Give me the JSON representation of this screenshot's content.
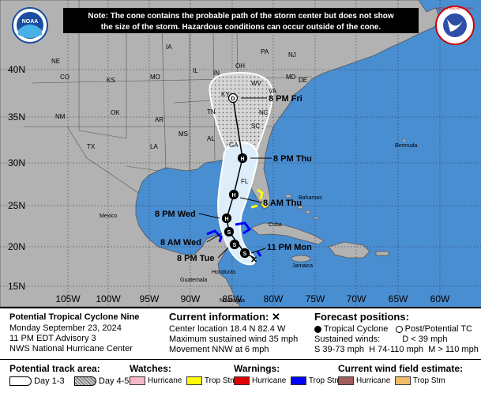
{
  "note": {
    "line1": "Note: The cone contains the probable path of the storm center but does not show",
    "line2": "the size of the storm. Hazardous conditions can occur outside of the cone."
  },
  "logos": {
    "noaa": "NOAA",
    "nws": "NATIONAL WEATHER SERVICE"
  },
  "latitudes": [
    "40N",
    "35N",
    "30N",
    "25N",
    "20N",
    "15N"
  ],
  "longitudes": [
    "105W",
    "100W",
    "95W",
    "90W",
    "85W",
    "80W",
    "75W",
    "70W",
    "65W",
    "60W"
  ],
  "states": [
    "NE",
    "IA",
    "IL",
    "IN",
    "OH",
    "PA",
    "NJ",
    "CO",
    "KS",
    "MO",
    "KY",
    "WV",
    "VA",
    "MD",
    "DE",
    "NM",
    "OK",
    "AR",
    "TN",
    "NC",
    "SC",
    "TX",
    "LA",
    "MS",
    "AL",
    "GA",
    "FL"
  ],
  "places": [
    "Bermuda",
    "Mexico",
    "Bahamas",
    "Cuba",
    "Jamaica",
    "Guatemala",
    "Honduras",
    "Nicaragua"
  ],
  "forecast_points": [
    {
      "time": "8 PM Fri",
      "symbol": "D"
    },
    {
      "time": "8 PM Thu",
      "symbol": "H"
    },
    {
      "time": "8 AM Thu",
      "symbol": "H"
    },
    {
      "time": "8 PM Wed",
      "symbol": "H"
    },
    {
      "time": "8 AM Wed",
      "symbol": "S"
    },
    {
      "time": "8 PM Tue",
      "symbol": "S"
    },
    {
      "time": "11 PM Mon",
      "symbol": "S"
    }
  ],
  "colors": {
    "ocean": "#4a8ed2",
    "land": "#b2b2b2",
    "cone_day13": "#ddeefa",
    "cone_day45": "#d4d4d4",
    "watch_hurricane": "#f5b8c8",
    "watch_tropstm": "#ffff00",
    "warn_hurricane": "#e00000",
    "warn_tropstm": "#0000ff",
    "wind_hurricane": "#a35d5d",
    "wind_tropstm": "#f0be6a"
  },
  "legend": {
    "storm_name": "Potential Tropical Cyclone Nine",
    "date": "Monday September 23, 2024",
    "advisory": "11 PM EDT Advisory 3",
    "center": "NWS National Hurricane Center",
    "current_title": "Current information:",
    "current_marker": "✕",
    "location": "Center location 18.4 N 82.4 W",
    "winds": "Maximum sustained wind 35 mph",
    "movement": "Movement NNW at 6 mph",
    "forecast_title": "Forecast positions:",
    "tc_label": "Tropical Cyclone",
    "ptc_label": "Post/Potential TC",
    "sustained_label": "Sustained winds:",
    "d_label": "D < 39 mph",
    "s_label": "S 39-73 mph",
    "h_label": "H 74-110 mph",
    "m_label": "M > 110 mph",
    "track_title": "Potential track area:",
    "day13": "Day 1-3",
    "day45": "Day 4-5",
    "watches_title": "Watches:",
    "watch_hurricane": "Hurricane",
    "watch_tropstm": "Trop Stm",
    "warnings_title": "Warnings:",
    "warn_hurricane": "Hurricane",
    "warn_tropstm": "Trop Stm",
    "wind_title": "Current wind field estimate:",
    "wind_hurricane": "Hurricane",
    "wind_tropstm": "Trop Stm"
  }
}
